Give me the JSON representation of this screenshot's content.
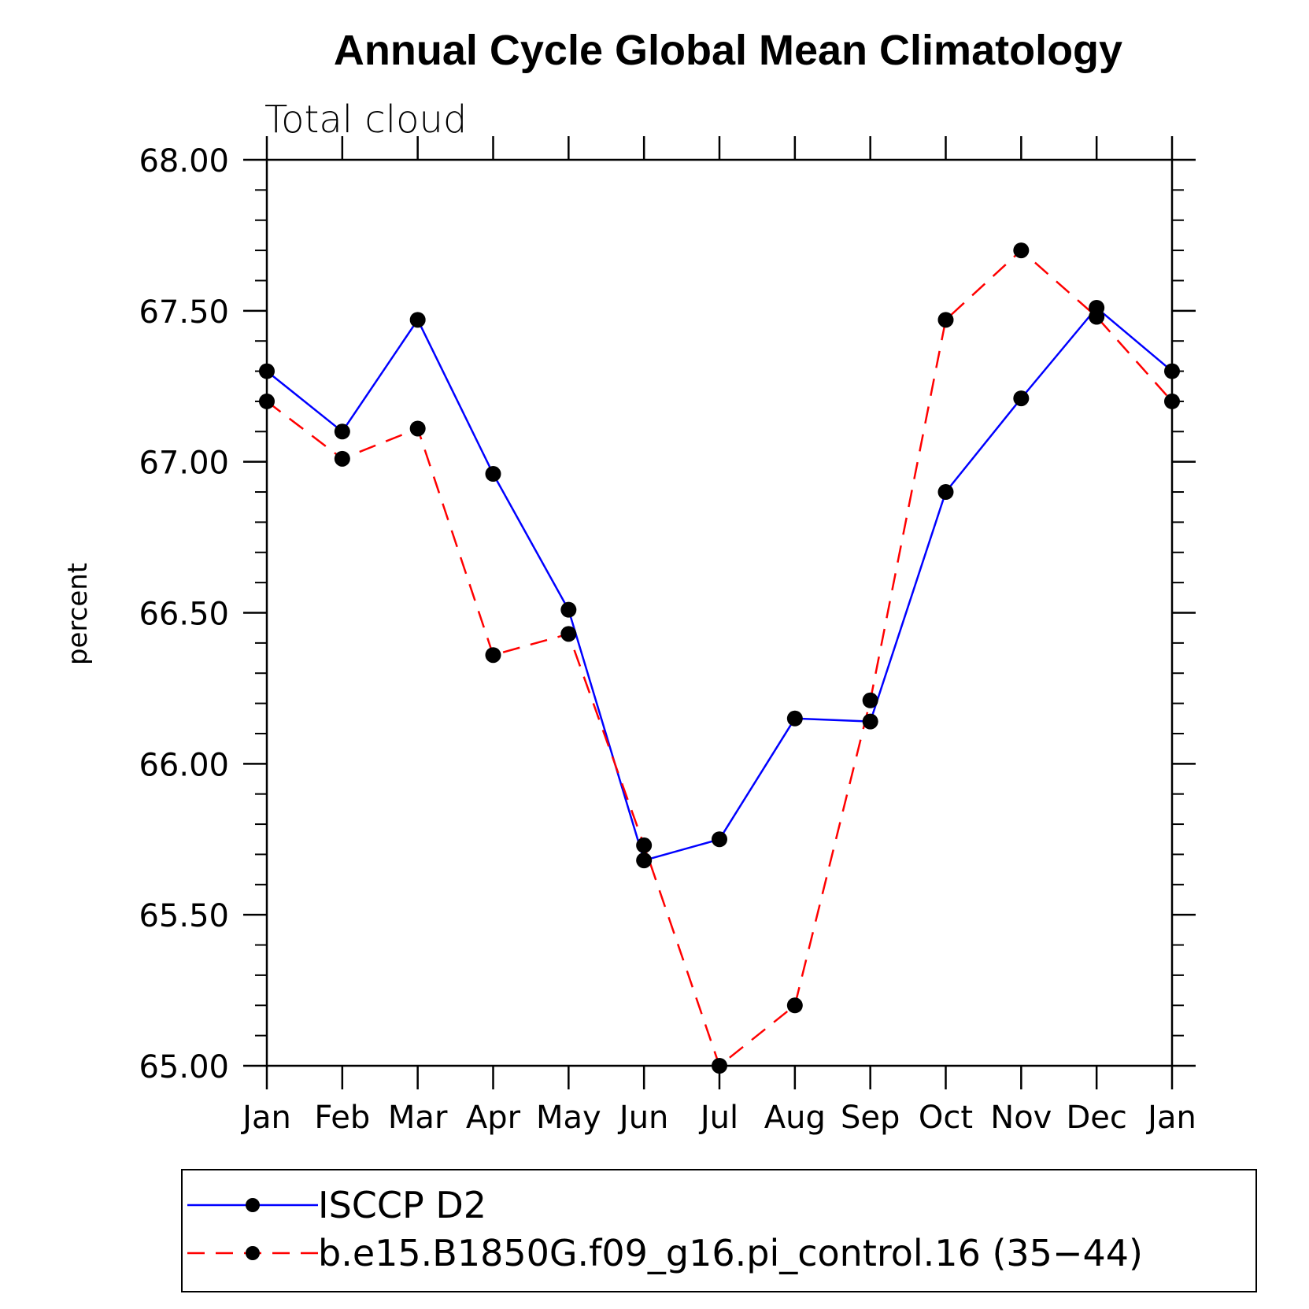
{
  "chart_data": {
    "type": "line",
    "title": "Annual Cycle Global Mean Climatology",
    "subtitle": "Total cloud",
    "xlabel": "",
    "ylabel": "percent",
    "categories": [
      "Jan",
      "Feb",
      "Mar",
      "Apr",
      "May",
      "Jun",
      "Jul",
      "Aug",
      "Sep",
      "Oct",
      "Nov",
      "Dec",
      "Jan"
    ],
    "ylim": [
      65.0,
      68.0
    ],
    "yticks": [
      "65.00",
      "65.50",
      "66.00",
      "66.50",
      "67.00",
      "67.50",
      "68.00"
    ],
    "ytick_values": [
      65.0,
      65.5,
      66.0,
      66.5,
      67.0,
      67.5,
      68.0
    ],
    "series": [
      {
        "name": "ISCCP D2",
        "color": "#0000ff",
        "dash": "solid",
        "values": [
          67.3,
          67.1,
          67.47,
          66.96,
          66.51,
          65.68,
          65.75,
          66.15,
          66.14,
          66.9,
          67.21,
          67.51,
          67.3
        ]
      },
      {
        "name": "b.e15.B1850G.f09_g16.pi_control.16 (35−44)",
        "color": "#ff0000",
        "dash": "dashed",
        "values": [
          67.2,
          67.01,
          67.11,
          66.36,
          66.43,
          65.73,
          65.0,
          65.2,
          66.21,
          67.47,
          67.7,
          67.48,
          67.2
        ]
      }
    ],
    "legend_position": "bottom",
    "grid": false
  }
}
